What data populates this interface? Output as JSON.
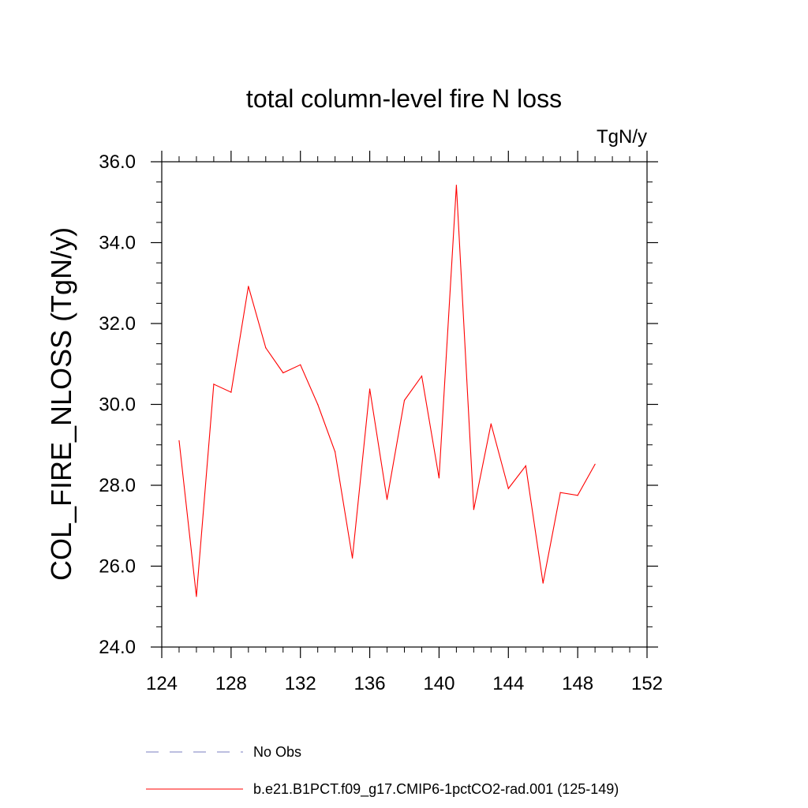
{
  "chart_data": {
    "type": "line",
    "title": "total column-level fire N loss",
    "units_label": "TgN/y",
    "ylabel": "COL_FIRE_NLOSS  (TgN/y)",
    "xlabel": "",
    "xlim": [
      124,
      152
    ],
    "ylim": [
      24,
      36
    ],
    "x_ticks": [
      124,
      128,
      132,
      136,
      140,
      144,
      148,
      152
    ],
    "x_tick_labels": [
      "124",
      "128",
      "132",
      "136",
      "140",
      "144",
      "148",
      "152"
    ],
    "y_ticks": [
      24,
      26,
      28,
      30,
      32,
      34,
      36
    ],
    "y_tick_labels": [
      "24.0",
      "26.0",
      "28.0",
      "30.0",
      "32.0",
      "34.0",
      "36.0"
    ],
    "grid": false,
    "legend_position": "bottom",
    "series": [
      {
        "name": "b.e21.B1PCT.f09_g17.CMIP6-1pctCO2-rad.001 (125-149)",
        "color": "#ff0000",
        "style": "solid",
        "x": [
          125,
          126,
          127,
          128,
          129,
          130,
          131,
          132,
          133,
          134,
          135,
          136,
          137,
          138,
          139,
          140,
          141,
          142,
          143,
          144,
          145,
          146,
          147,
          148,
          149
        ],
        "y": [
          29.1,
          25.25,
          30.5,
          30.3,
          32.92,
          31.4,
          30.78,
          30.98,
          30.0,
          28.83,
          26.2,
          30.38,
          27.65,
          30.1,
          30.7,
          28.18,
          35.42,
          27.4,
          29.52,
          27.92,
          28.48,
          25.58,
          27.82,
          27.75,
          28.52
        ]
      }
    ],
    "legend": [
      {
        "label": "No Obs",
        "color": "#7a7fc0",
        "style": "dashed"
      },
      {
        "label": "b.e21.B1PCT.f09_g17.CMIP6-1pctCO2-rad.001 (125-149)",
        "color": "#ff0000",
        "style": "solid"
      }
    ]
  }
}
